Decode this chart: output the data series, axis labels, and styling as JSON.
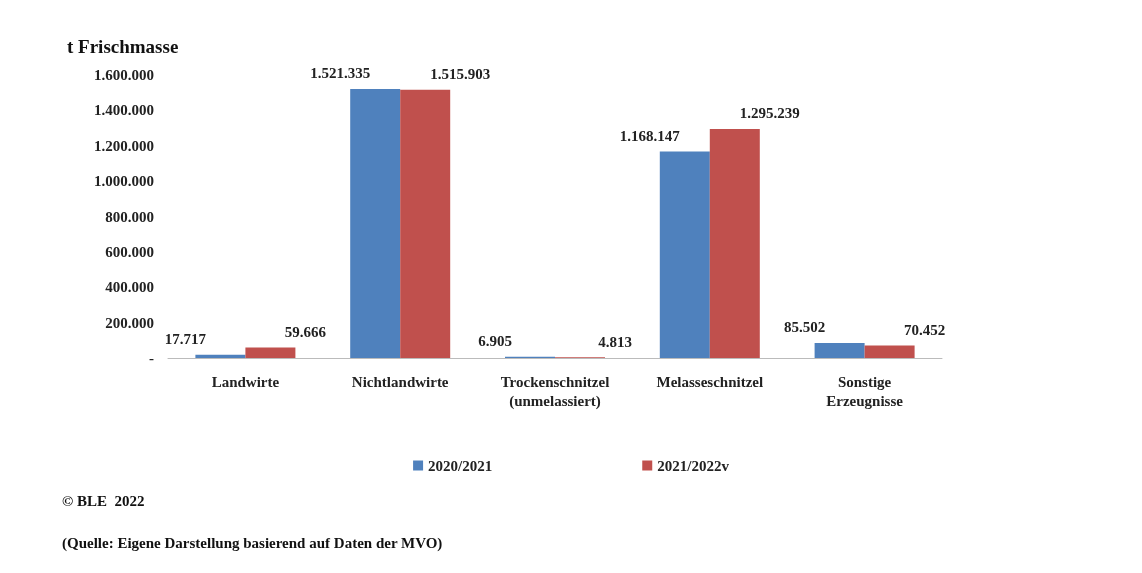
{
  "chart_data": {
    "type": "bar",
    "ylabel": "t Frischmasse",
    "categories": [
      "Landwirte",
      "Nichtlandwirte",
      "Trockenschnitzel\n(unmelassiert)",
      "Melasseschnitzel",
      "Sonstige\nErzeugnisse"
    ],
    "series": [
      {
        "name": "2020/2021",
        "color": "#4f81bd",
        "values": [
          17717,
          1521335,
          6905,
          1168147,
          85502
        ],
        "value_labels": [
          "17.717",
          "1.521.335",
          "6.905",
          "1.168.147",
          "85.502"
        ]
      },
      {
        "name": "2021/2022v",
        "color": "#c0504d",
        "values": [
          59666,
          1515903,
          4813,
          1295239,
          70452
        ],
        "value_labels": [
          "59.666",
          "1.515.903",
          "4.813",
          "1.295.239",
          "70.452"
        ]
      }
    ],
    "ylim": [
      0,
      1600000
    ],
    "yticks": [
      {
        "value": 0,
        "label": "-"
      },
      {
        "value": 200000,
        "label": "200.000"
      },
      {
        "value": 400000,
        "label": "400.000"
      },
      {
        "value": 600000,
        "label": "600.000"
      },
      {
        "value": 800000,
        "label": "800.000"
      },
      {
        "value": 1000000,
        "label": "1.000.000"
      },
      {
        "value": 1200000,
        "label": "1.200.000"
      },
      {
        "value": 1400000,
        "label": "1.400.000"
      },
      {
        "value": 1600000,
        "label": "1.600.000"
      }
    ],
    "grid": false,
    "legend": "bottom",
    "annotations": [
      "© BLE  2022",
      "(Quelle: Eigene Darstellung basierend auf Daten der MVO)"
    ]
  }
}
